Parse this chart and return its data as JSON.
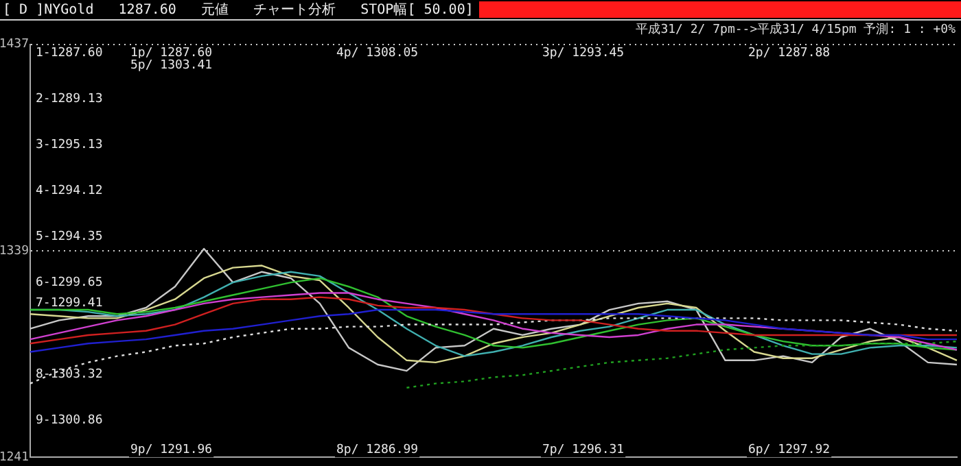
{
  "chart_data": {
    "type": "line",
    "title": "[ D ]NYGold   1287.60   元値   チャート分析   STOP幅[ 50.00]",
    "subtitle": "平成31/ 2/ 7pm-->平成31/ 4/15pm 予測: 1 : +0%",
    "categories": [
      null,
      null,
      null,
      null,
      null,
      null,
      null,
      null,
      null,
      null,
      null,
      null,
      null,
      null,
      null,
      null,
      null,
      null,
      null,
      null,
      null,
      null,
      null,
      null,
      null,
      null,
      null,
      null,
      null,
      null,
      null,
      null,
      null
    ],
    "ylim": [
      1241,
      1437
    ],
    "yticks": [
      1241,
      1339,
      1437
    ],
    "grid": "y",
    "legend": false,
    "marker": "none",
    "line_style": "solid",
    "series": [
      {
        "color": "#2020d0",
        "values": [
          1291,
          1293,
          1295,
          1296,
          1297,
          1299,
          1301,
          1302,
          1304,
          1306,
          1308,
          1309,
          1311,
          1311,
          1311,
          1310,
          1309,
          1309,
          1309,
          1309,
          1309,
          1309,
          1308,
          1307,
          1306,
          1304,
          1302,
          1301,
          1300,
          1299,
          1299,
          1297,
          1297
        ]
      },
      {
        "color": "#d02020",
        "values": [
          1295,
          1297,
          1299,
          1300,
          1301,
          1304,
          1309,
          1314,
          1316,
          1316,
          1317,
          1316,
          1313,
          1312,
          1312,
          1311,
          1309,
          1307,
          1306,
          1306,
          1304,
          1302,
          1301,
          1301,
          1300,
          1299,
          1299,
          1299,
          1299,
          1299,
          1299,
          1299,
          1299
        ]
      },
      {
        "color": "#d040d0",
        "values": [
          1297,
          1300,
          1303,
          1306,
          1308,
          1311,
          1314,
          1316,
          1317,
          1318,
          1319,
          1319,
          1316,
          1314,
          1312,
          1309,
          1306,
          1302,
          1300,
          1299,
          1298,
          1299,
          1302,
          1304,
          1304,
          1303,
          1302,
          1301,
          1300,
          1299,
          1298,
          1295,
          1292
        ]
      },
      {
        "color": "#e0e0e0",
        "line_style": "dotted",
        "values": [
          1276,
          1282,
          1286,
          1289,
          1291,
          1294,
          1295,
          1298,
          1300,
          1302,
          1302,
          1303,
          1303,
          1304,
          1304,
          1304,
          1304,
          1305,
          1306,
          1306,
          1307,
          1307,
          1307,
          1307,
          1307,
          1307,
          1306,
          1306,
          1306,
          1305,
          1304,
          1302,
          1301
        ]
      },
      {
        "color": "#20a020",
        "line_style": "dotted",
        "values": [
          null,
          null,
          null,
          null,
          null,
          null,
          null,
          null,
          null,
          null,
          null,
          null,
          null,
          1274,
          1276,
          1277,
          1279,
          1280,
          1282,
          1284,
          1286,
          1287,
          1288,
          1290,
          1292,
          1293,
          1294,
          1294,
          1294,
          1295,
          1295,
          1295,
          1296
        ]
      },
      {
        "color": "#30c030",
        "values": [
          1311,
          1311,
          1311,
          1309,
          1310,
          1312,
          1315,
          1318,
          1321,
          1324,
          1326,
          1322,
          1317,
          1308,
          1303,
          1299,
          1294,
          1293,
          1295,
          1298,
          1301,
          1304,
          1306,
          1307,
          1303,
          1299,
          1296,
          1294,
          1294,
          1295,
          1295,
          1293,
          1292
        ]
      },
      {
        "color": "#40b0b0",
        "values": [
          1311,
          1311,
          1310,
          1308,
          1309,
          1311,
          1317,
          1324,
          1327,
          1329,
          1327,
          1319,
          1311,
          1302,
          1294,
          1289,
          1291,
          1294,
          1298,
          1301,
          1303,
          1307,
          1311,
          1311,
          1304,
          1299,
          1294,
          1290,
          1290,
          1293,
          1294,
          1294,
          1293
        ]
      },
      {
        "color": "#d8d890",
        "values": [
          1309,
          1308,
          1307,
          1307,
          1311,
          1316,
          1326,
          1331,
          1332,
          1327,
          1325,
          1312,
          1298,
          1287,
          1286,
          1289,
          1295,
          1298,
          1300,
          1304,
          1308,
          1312,
          1314,
          1312,
          1301,
          1291,
          1288,
          1288,
          1292,
          1296,
          1298,
          1293,
          1287
        ]
      },
      {
        "color": "#c8c8c8",
        "values": [
          1302,
          1306,
          1308,
          1308,
          1312,
          1322,
          1340,
          1324,
          1329,
          1326,
          1314,
          1293,
          1285,
          1282,
          1293,
          1294,
          1302,
          1299,
          1302,
          1304,
          1311,
          1314,
          1315,
          1311,
          1287,
          1287,
          1289,
          1286,
          1298,
          1302,
          1296,
          1286,
          1285
        ]
      }
    ],
    "annotations": [
      "1-1287.60",
      "2-1289.13",
      "3-1295.13",
      "4-1294.12",
      "5-1294.35",
      "6-1299.65",
      "7-1299.41",
      "8-1303.32",
      "9-1300.86",
      "1p/ 1287.60",
      "5p/ 1303.41",
      "4p/ 1308.05",
      "3p/ 1293.45",
      "2p/ 1287.88",
      "9p/ 1291.96",
      "8p/ 1286.99",
      "7p/ 1296.31",
      "6p/ 1297.92"
    ]
  }
}
